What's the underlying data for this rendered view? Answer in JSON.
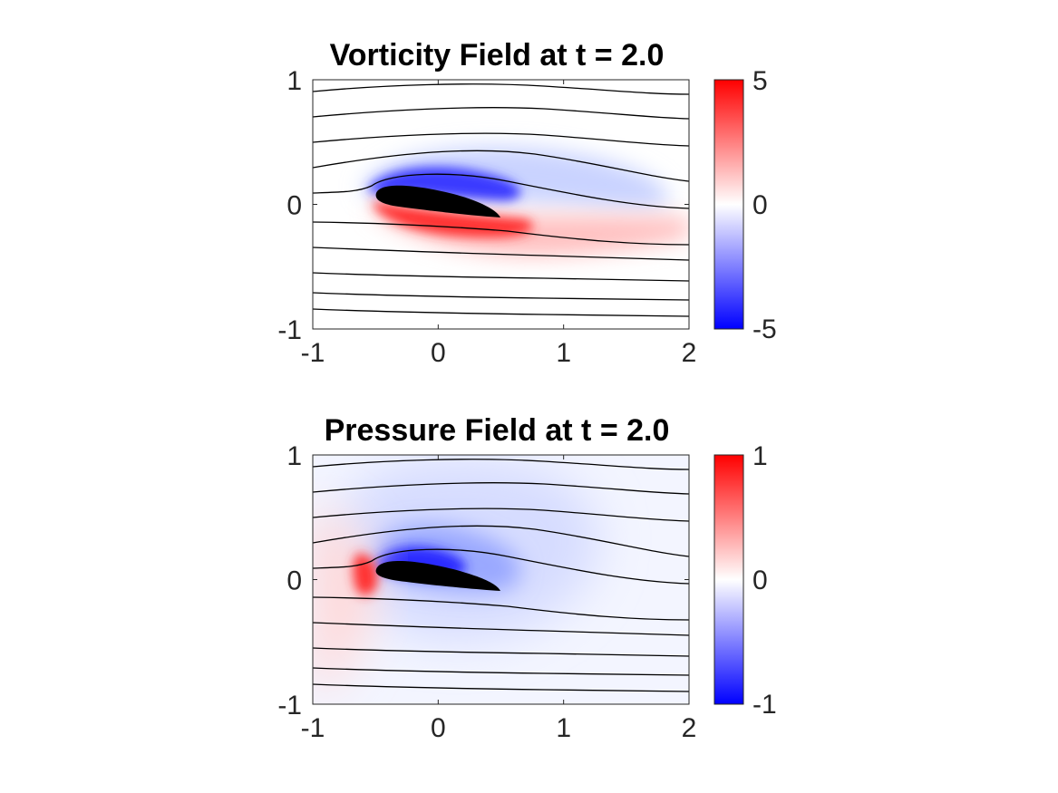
{
  "chart_data": [
    {
      "type": "heatmap",
      "title": "Vorticity Field at t = 2.0",
      "xlim": [
        -1,
        2
      ],
      "ylim": [
        -1,
        1
      ],
      "xticks": [
        "-1",
        "0",
        "1",
        "2"
      ],
      "yticks": [
        "-1",
        "0",
        "1"
      ],
      "colorbar": {
        "limits": [
          -5,
          5
        ],
        "ticks": [
          "-5",
          "0",
          "5"
        ],
        "colormap": [
          "#0000ff",
          "#ffffff",
          "#ff0000"
        ]
      },
      "airfoil": {
        "leading_edge_x": -0.5,
        "trailing_edge_x": 0.5,
        "chord_line_y": [
          0.05,
          -0.1
        ],
        "color": "#000000"
      },
      "features": [
        {
          "name": "upper shear layer",
          "sign": "negative",
          "x_range": [
            -0.55,
            1.9
          ],
          "peak_value": -5
        },
        {
          "name": "lower shear layer / wake",
          "sign": "positive",
          "x_range": [
            -0.5,
            2.0
          ],
          "peak_value": 5
        }
      ],
      "streamlines_y_at_inlet": [
        0.88,
        0.68,
        0.48,
        0.28,
        0.05,
        -0.15,
        -0.35,
        -0.55,
        -0.72,
        -0.88
      ],
      "grid": false
    },
    {
      "type": "heatmap",
      "title": "Pressure Field at t = 2.0",
      "xlim": [
        -1,
        2
      ],
      "ylim": [
        -1,
        1
      ],
      "xticks": [
        "-1",
        "0",
        "1",
        "2"
      ],
      "yticks": [
        "-1",
        "0",
        "1"
      ],
      "colorbar": {
        "limits": [
          -1,
          1
        ],
        "ticks": [
          "-1",
          "0",
          "1"
        ],
        "colormap": [
          "#0000ff",
          "#ffffff",
          "#ff0000"
        ]
      },
      "airfoil": {
        "leading_edge_x": -0.5,
        "trailing_edge_x": 0.5,
        "chord_line_y": [
          0.05,
          -0.1
        ],
        "color": "#000000"
      },
      "features": [
        {
          "name": "stagnation high pressure",
          "sign": "positive",
          "x_range": [
            -1.0,
            -0.35
          ],
          "peak_value": 1
        },
        {
          "name": "suction low pressure",
          "sign": "negative",
          "x_range": [
            -0.5,
            1.0
          ],
          "peak_value": -1
        }
      ],
      "streamlines_y_at_inlet": [
        0.88,
        0.68,
        0.48,
        0.28,
        0.05,
        -0.15,
        -0.35,
        -0.55,
        -0.72,
        -0.88
      ],
      "grid": false
    }
  ]
}
